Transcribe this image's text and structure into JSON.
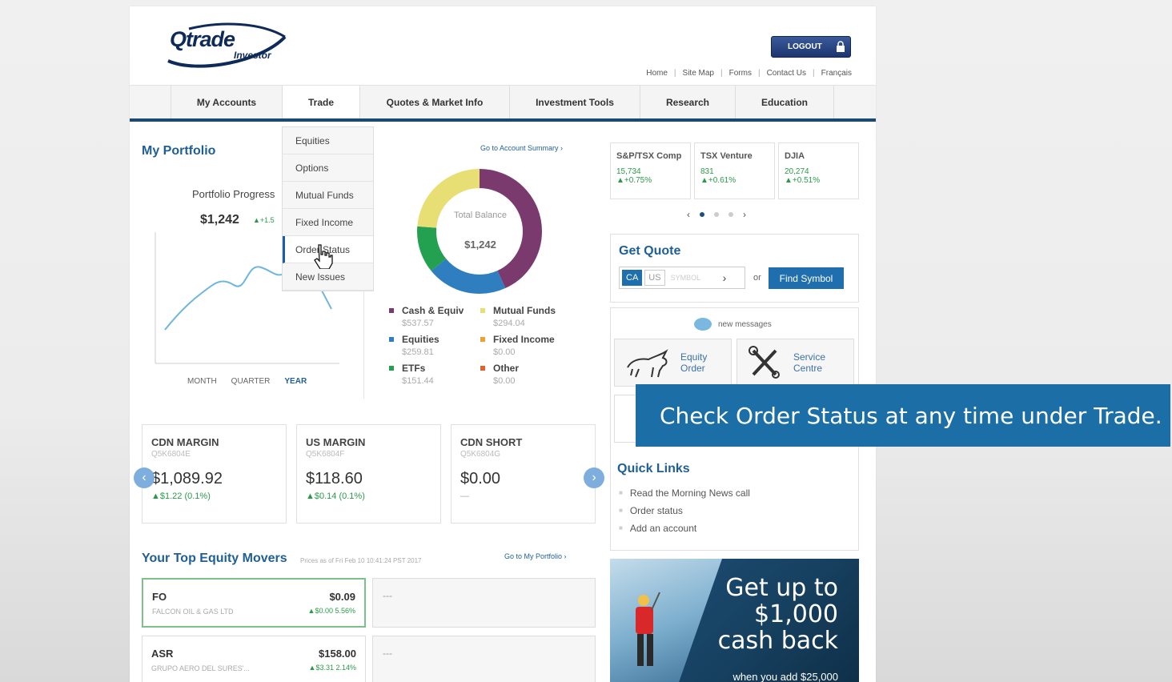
{
  "brand": {
    "name": "Qtrade",
    "sub": "Investor"
  },
  "header": {
    "logout_label": "LOGOUT",
    "links": [
      "Home",
      "Site Map",
      "Forms",
      "Contact Us",
      "Français"
    ]
  },
  "nav": {
    "items": [
      "My Accounts",
      "Trade",
      "Quotes & Market Info",
      "Investment Tools",
      "Research",
      "Education"
    ],
    "active": "Trade"
  },
  "trade_menu": {
    "items": [
      "Equities",
      "Options",
      "Mutual Funds",
      "Fixed Income",
      "Order Status",
      "New Issues"
    ],
    "hovered": "Order Status"
  },
  "portfolio": {
    "title": "My Portfolio",
    "progress_label": "Portfolio Progress",
    "progress_value": "$1,242",
    "progress_change": "▲+1.5",
    "ranges": [
      "MONTH",
      "QUARTER",
      "YEAR"
    ],
    "selected_range": "YEAR",
    "account_summary_link": "Go to Account Summary ›",
    "donut_label": "Total Balance",
    "donut_value": "$1,242",
    "legend": [
      {
        "name": "Cash & Equiv",
        "amount": "$537.57",
        "color": "#7b3a6e"
      },
      {
        "name": "Mutual Funds",
        "amount": "$294.04",
        "color": "#e8df74"
      },
      {
        "name": "Equities",
        "amount": "$259.81",
        "color": "#2f7fc0"
      },
      {
        "name": "Fixed Income",
        "amount": "$0.00",
        "color": "#f0a030"
      },
      {
        "name": "ETFs",
        "amount": "$151.44",
        "color": "#23a050"
      },
      {
        "name": "Other",
        "amount": "$0.00",
        "color": "#e06030"
      }
    ]
  },
  "indices": [
    {
      "name": "S&P/TSX Comp",
      "value": "15,734",
      "change": "▲+0.75%"
    },
    {
      "name": "TSX Venture",
      "value": "831",
      "change": "▲+0.61%"
    },
    {
      "name": "DJIA",
      "value": "20,274",
      "change": "▲+0.51%"
    }
  ],
  "quote": {
    "title": "Get Quote",
    "markets": [
      "CA",
      "US"
    ],
    "selected_market": "CA",
    "symbol_placeholder": "SYMBOL",
    "or_label": "or",
    "find_label": "Find Symbol"
  },
  "messages": {
    "label": "new messages",
    "tiles": [
      {
        "line1": "Equity",
        "line2": "Order"
      },
      {
        "line1": "Service",
        "line2": "Centre"
      }
    ]
  },
  "quick_links": {
    "title": "Quick Links",
    "items": [
      "Read the Morning News call",
      "Order status",
      "Add an account"
    ]
  },
  "accounts": [
    {
      "name": "CDN MARGIN",
      "id": "Q5K6804E",
      "balance": "$1,089.92",
      "change": "▲$1.22 (0.1%)"
    },
    {
      "name": "US MARGIN",
      "id": "Q5K6804F",
      "balance": "$118.60",
      "change": "▲$0.14 (0.1%)"
    },
    {
      "name": "CDN SHORT",
      "id": "Q5K6804G",
      "balance": "$0.00",
      "change": "—"
    }
  ],
  "movers": {
    "title": "Your Top Equity Movers",
    "note": "Prices as of Fri Feb 10 10:41:24 PST 2017",
    "link": "Go to My Portfolio ›",
    "items": [
      {
        "ticker": "FO",
        "company": "FALCON OIL & GAS LTD",
        "price": "$0.09",
        "change": "▲$0.00 5.56%"
      },
      {
        "ticker": "ASR",
        "company": "GRUPO AERO DEL SURES'...",
        "price": "$158.00",
        "change": "▲$3.31 2.14%"
      }
    ],
    "empty": "---"
  },
  "promo": {
    "headline_1": "Get up to",
    "headline_2": "$1,000",
    "headline_3": "cash back",
    "sub": "when you add $25,000"
  },
  "caption": "Check Order Status at any time under Trade."
}
